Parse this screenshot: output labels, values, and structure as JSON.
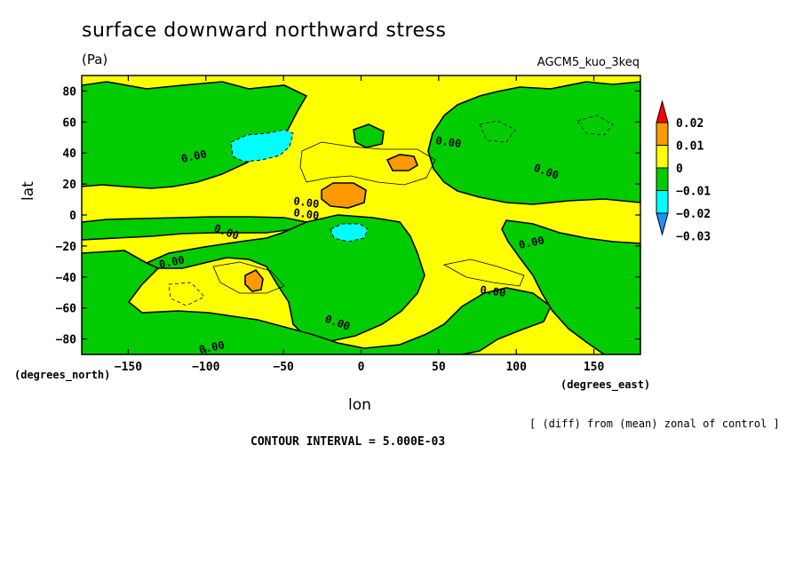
{
  "chart_data": {
    "type": "heatmap",
    "title": "surface downward northward stress",
    "units": "(Pa)",
    "model": "AGCM5_kuo_3keq",
    "xlabel": "lon",
    "ylabel": "lat",
    "x_units": "(degrees_east)",
    "y_units": "(degrees_north)",
    "note": "[ (diff) from (mean) zonal of control ]",
    "contour_interval": "CONTOUR INTERVAL = 5.000E-03",
    "xlim": [
      -180,
      180
    ],
    "ylim": [
      -90,
      90
    ],
    "x_ticks": [
      -150,
      -100,
      -50,
      0,
      50,
      100,
      150
    ],
    "x_tick_labels": [
      "−150",
      "−100",
      "−50",
      "0",
      "50",
      "100",
      "150"
    ],
    "y_ticks": [
      -80,
      -60,
      -40,
      -20,
      0,
      20,
      40,
      60,
      80
    ],
    "y_tick_labels": [
      "−80",
      "−60",
      "−40",
      "−20",
      "0",
      "20",
      "40",
      "60",
      "80"
    ],
    "colorbar": {
      "levels": [
        -0.03,
        -0.02,
        -0.01,
        0,
        0.01,
        0.02
      ],
      "level_labels": [
        "−0.03",
        "−0.02",
        "−0.01",
        "0",
        "0.01",
        "0.02"
      ],
      "colors": [
        "#1e90ff",
        "#00ffff",
        "#00cc00",
        "#ffff00",
        "#ff9900",
        "#ff0000"
      ],
      "under_color": "#1e90ff",
      "over_color": "#ff0000"
    },
    "contour_labels": [
      "0.00",
      "0.00",
      "0.00",
      "0.00",
      "0.00",
      "0.00",
      "0.00",
      "0.00",
      "0.00",
      "0.00",
      "0.00"
    ],
    "features": [
      {
        "lon": -68,
        "lat": 44,
        "value": -0.017
      },
      {
        "lon": -10,
        "lat": 14,
        "value": 0.014
      },
      {
        "lon": 25,
        "lat": 33,
        "value": 0.011
      },
      {
        "lon": -10,
        "lat": -10,
        "value": -0.013
      },
      {
        "lon": -68,
        "lat": -40,
        "value": 0.011
      }
    ]
  }
}
